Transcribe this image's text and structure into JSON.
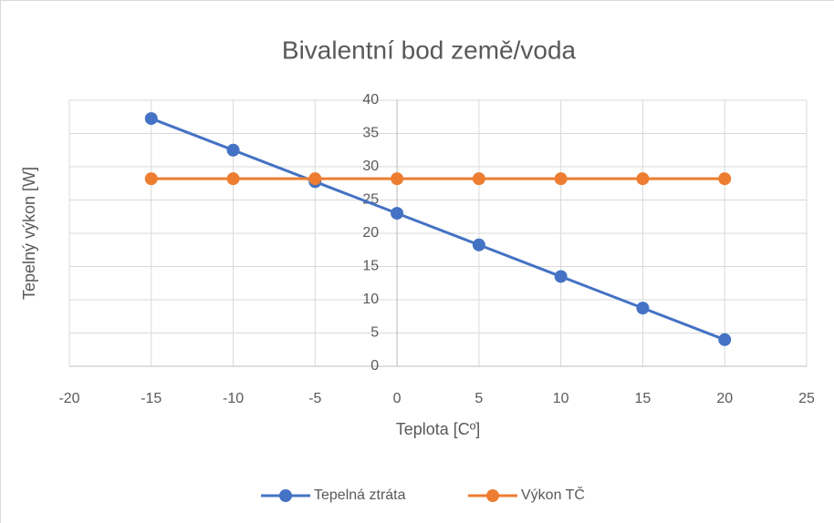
{
  "chart_data": {
    "type": "line",
    "title": "Bivalentní bod země/voda",
    "x_label": "Teplota [Cº]",
    "y_label": "Tepelný výkon [W]",
    "x": [
      -15,
      -10,
      -5,
      0,
      5,
      10,
      15,
      20
    ],
    "series": [
      {
        "name": "Tepelná ztráta",
        "color": "#4472c4",
        "values": [
          37.25,
          32.5,
          27.75,
          23,
          18.25,
          13.5,
          8.75,
          4
        ]
      },
      {
        "name": "Výkon TČ",
        "color": "#ed7d31",
        "values": [
          28.2,
          28.2,
          28.2,
          28.2,
          28.2,
          28.2,
          28.2,
          28.2
        ]
      }
    ],
    "xlim": [
      -20,
      25
    ],
    "xticks": [
      -20,
      -15,
      -10,
      -5,
      0,
      5,
      10,
      15,
      20,
      25
    ],
    "ylim": [
      0,
      40
    ],
    "yticks": [
      0,
      5,
      10,
      15,
      20,
      25,
      30,
      35,
      40
    ],
    "grid": true,
    "legend": "bottom"
  }
}
